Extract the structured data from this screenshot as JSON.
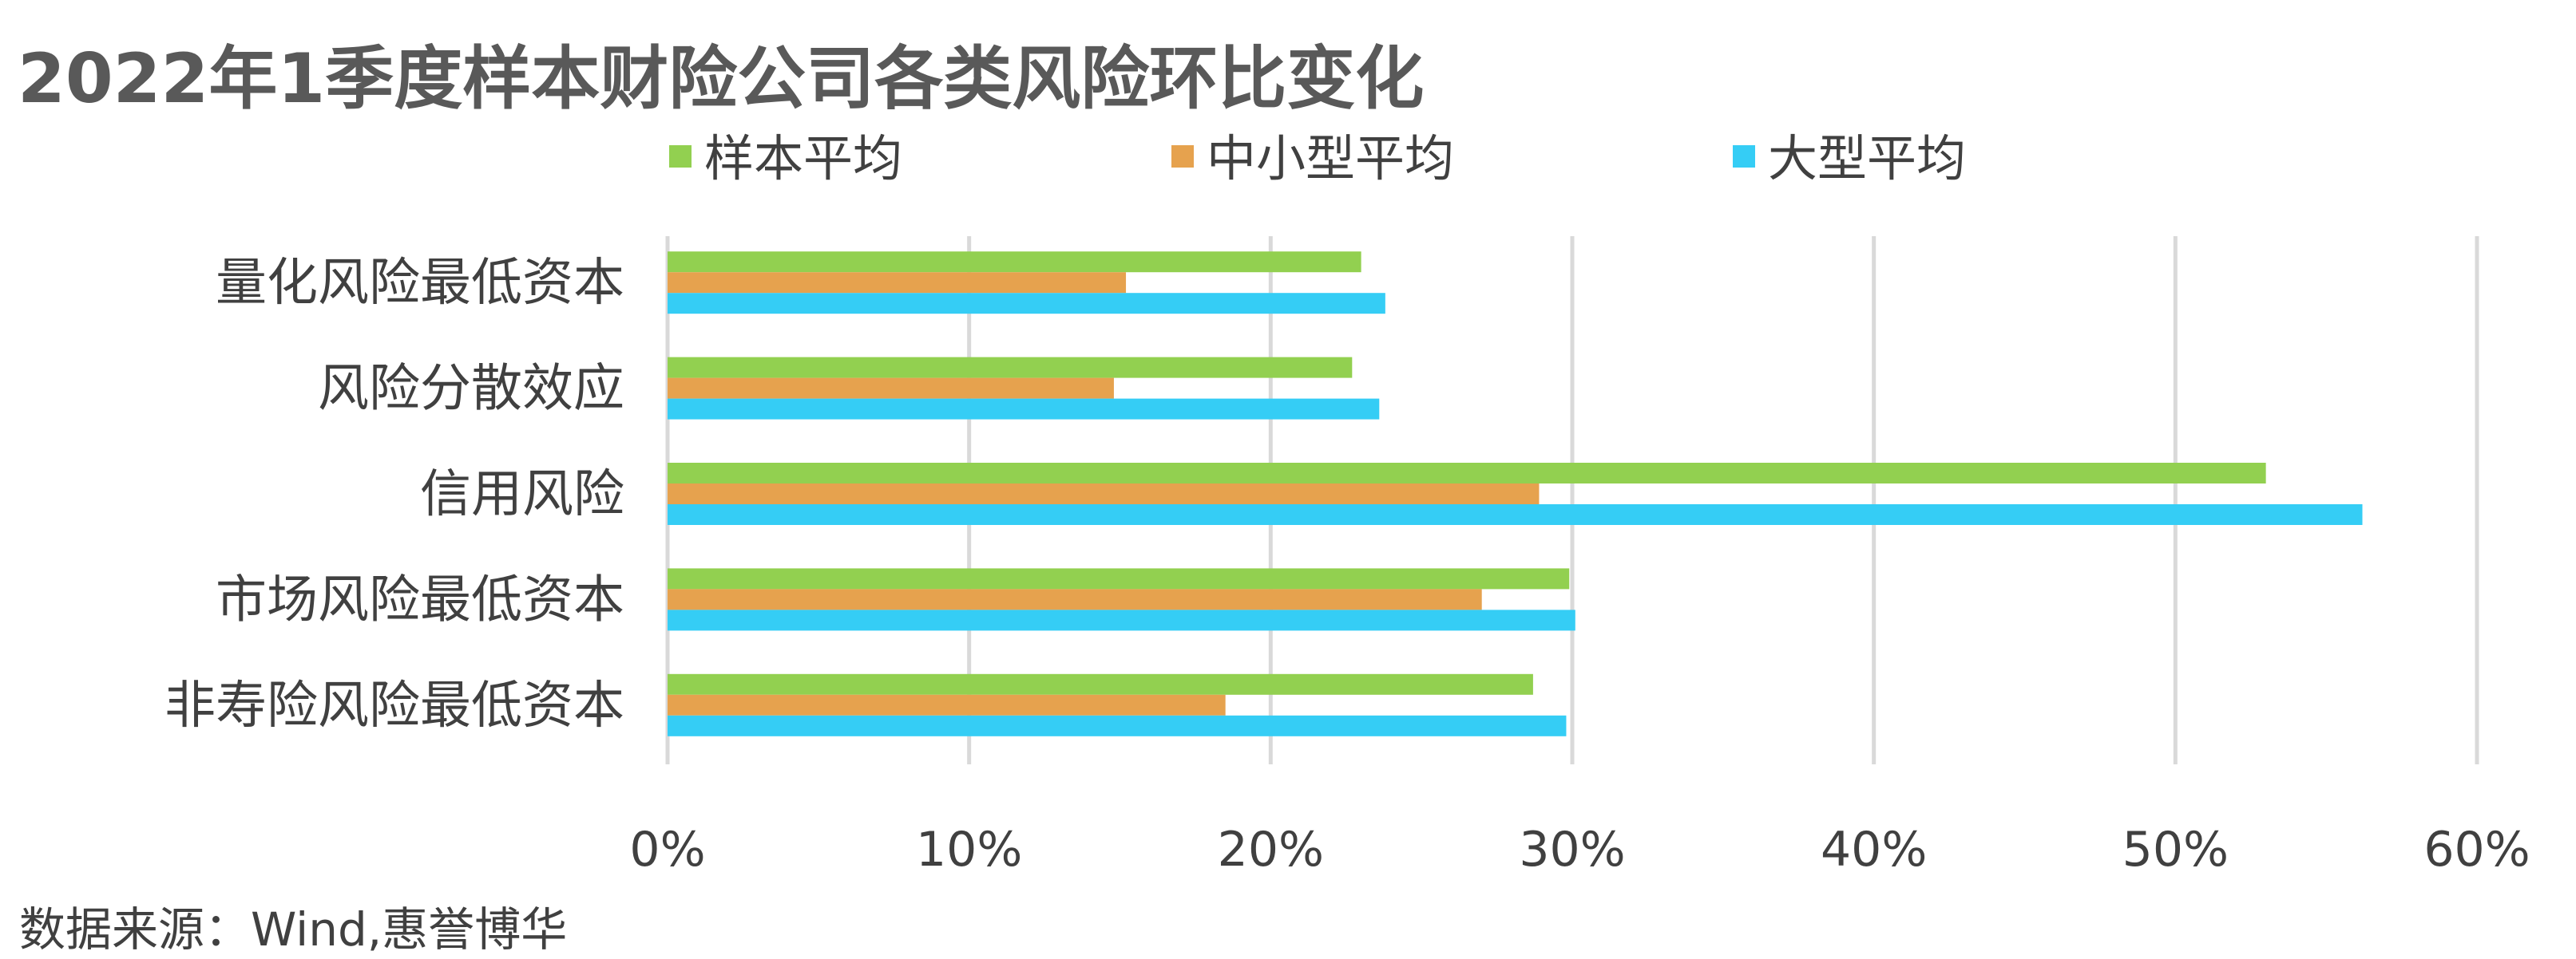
{
  "chart_data": {
    "type": "bar",
    "orientation": "horizontal",
    "title": "2022年1季度样本财险公司各类风险环比变化",
    "source": "数据来源：Wind,惠誉博华",
    "categories": [
      "量化风险最低资本",
      "风险分散效应",
      "信用风险",
      "市场风险最低资本",
      "非寿险风险最低资本"
    ],
    "series": [
      {
        "name": "样本平均",
        "color": "#92D050",
        "values": [
          23.0,
          22.7,
          53.0,
          29.9,
          28.7
        ]
      },
      {
        "name": "中小型平均",
        "color": "#E6A24E",
        "values": [
          15.2,
          14.8,
          28.9,
          27.0,
          18.5
        ]
      },
      {
        "name": "大型平均",
        "color": "#35CDF5",
        "values": [
          23.8,
          23.6,
          56.2,
          30.1,
          29.8
        ]
      }
    ],
    "xlim": [
      0,
      60
    ],
    "xticks": [
      "0%",
      "10%",
      "20%",
      "30%",
      "40%",
      "50%",
      "60%"
    ],
    "xlabel": "",
    "ylabel": "",
    "grid": true,
    "legend_position": "top"
  }
}
